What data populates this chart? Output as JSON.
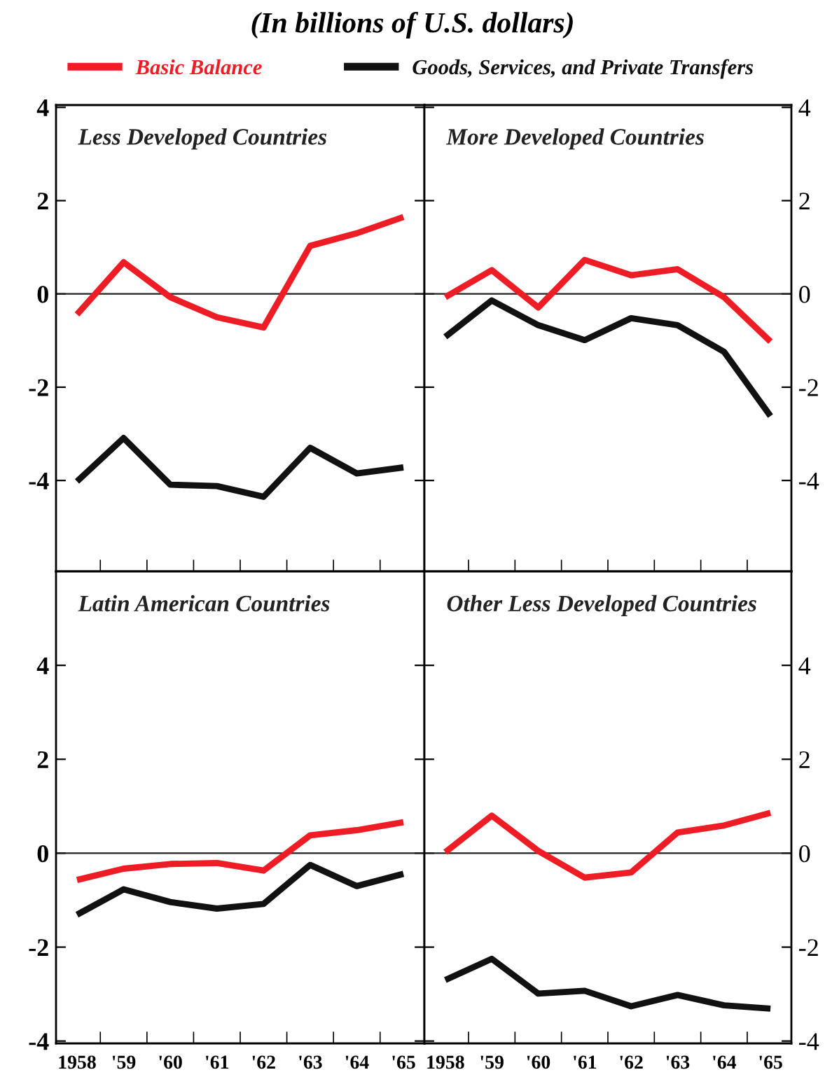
{
  "chart_data": [
    {
      "type": "line",
      "title": "Less Developed Countries",
      "annotations": [
        "(In billions of U.S. dollars)"
      ],
      "categories": [
        null,
        null,
        null,
        null,
        null,
        null,
        null,
        null
      ],
      "ylim": [
        -5.95,
        4.05
      ],
      "yticks": [
        -4,
        -2,
        0,
        2,
        4
      ],
      "tick_labels": "y",
      "legend": "top",
      "grid": false,
      "marker": "none",
      "line_style": "solid",
      "ref_lines": [
        {
          "axis": "y",
          "value": 0,
          "color": "#222222"
        }
      ],
      "series": [
        {
          "name": "Basic Balance",
          "color": "#ee1c25",
          "values": [
            -0.44,
            0.68,
            -0.07,
            -0.5,
            -0.72,
            1.03,
            1.3,
            1.65
          ]
        },
        {
          "name": "Goods, Services, and Private Transfers",
          "color": "#111111",
          "values": [
            -4.02,
            -3.09,
            -4.09,
            -4.12,
            -4.35,
            -3.3,
            -3.85,
            -3.72
          ]
        }
      ]
    },
    {
      "type": "line",
      "title": "More Developed Countries",
      "categories": [
        null,
        null,
        null,
        null,
        null,
        null,
        null,
        null
      ],
      "ylim": [
        -5.95,
        4.05
      ],
      "yticks": [
        -4,
        -2,
        0,
        2,
        4
      ],
      "tick_labels": "y",
      "grid": false,
      "marker": "none",
      "line_style": "solid",
      "ref_lines": [
        {
          "axis": "y",
          "value": 0,
          "color": "#222222"
        }
      ],
      "series": [
        {
          "color": "#ee1c25",
          "values": [
            -0.07,
            0.51,
            -0.29,
            0.73,
            0.4,
            0.53,
            -0.07,
            -1.02
          ]
        },
        {
          "color": "#111111",
          "values": [
            -0.92,
            -0.14,
            -0.67,
            -0.99,
            -0.52,
            -0.67,
            -1.24,
            -2.62
          ]
        }
      ]
    },
    {
      "type": "line",
      "title": "Latin American Countries",
      "categories": [
        "1958",
        "'59",
        "'60",
        "'61",
        "'62",
        "'63",
        "'64",
        "'65"
      ],
      "ylim": [
        -4.05,
        6.0
      ],
      "yticks": [
        -4,
        -2,
        0,
        2,
        4
      ],
      "grid": false,
      "marker": "none",
      "line_style": "solid",
      "ref_lines": [
        {
          "axis": "y",
          "value": 0,
          "color": "#222222"
        }
      ],
      "series": [
        {
          "color": "#ee1c25",
          "values": [
            -0.57,
            -0.33,
            -0.23,
            -0.21,
            -0.37,
            0.38,
            0.49,
            0.66
          ]
        },
        {
          "color": "#111111",
          "values": [
            -1.31,
            -0.77,
            -1.04,
            -1.18,
            -1.08,
            -0.25,
            -0.7,
            -0.44
          ]
        }
      ]
    },
    {
      "type": "line",
      "title": "Other Less Developed Countries",
      "categories": [
        "1958",
        "'59",
        "'60",
        "'61",
        "'62",
        "'63",
        "'64",
        "'65"
      ],
      "ylim": [
        -4.05,
        6.0
      ],
      "yticks": [
        -4,
        -2,
        0,
        2,
        4
      ],
      "grid": false,
      "marker": "none",
      "line_style": "solid",
      "ref_lines": [
        {
          "axis": "y",
          "value": 0,
          "color": "#222222"
        }
      ],
      "series": [
        {
          "color": "#ee1c25",
          "values": [
            0.02,
            0.8,
            0.05,
            -0.52,
            -0.41,
            0.44,
            0.59,
            0.86
          ]
        },
        {
          "color": "#111111",
          "values": [
            -2.7,
            -2.25,
            -2.99,
            -2.93,
            -3.26,
            -3.02,
            -3.24,
            -3.31
          ]
        }
      ]
    }
  ]
}
